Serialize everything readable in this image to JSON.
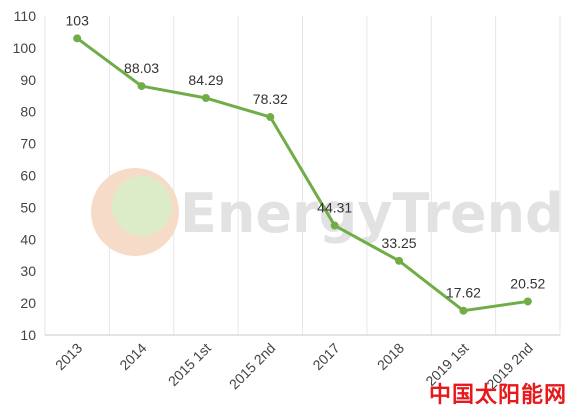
{
  "chart_data": {
    "type": "line",
    "categories": [
      "2013",
      "2014",
      "2015 1st",
      "2015 2nd",
      "2017",
      "2018",
      "2019 1st",
      "2019 2nd"
    ],
    "values": [
      103,
      88.03,
      84.29,
      78.32,
      44.31,
      33.25,
      17.62,
      20.52
    ],
    "value_labels": [
      "103",
      "88.03",
      "84.29",
      "78.32",
      "44.31",
      "33.25",
      "17.62",
      "20.52"
    ],
    "yticks": [
      "10",
      "20",
      "30",
      "40",
      "50",
      "60",
      "70",
      "80",
      "90",
      "100",
      "110"
    ],
    "ylim": [
      10,
      110
    ],
    "grid": "vertical",
    "line_color": "#70ad47"
  },
  "watermark": {
    "text": "EnergyTrend",
    "site_mark": "中国太阳能网"
  }
}
